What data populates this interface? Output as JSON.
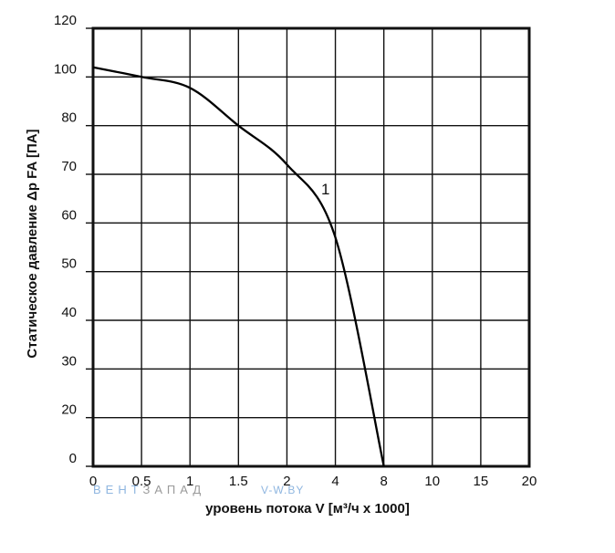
{
  "chart_data": {
    "type": "line",
    "xlabel": "уровень потока V [м³/ч x 1000]",
    "ylabel": "Статическое давление Δp FA [ПА]",
    "x_tick_labels": [
      "0",
      "0.5",
      "1",
      "1.5",
      "2",
      "4",
      "8",
      "10",
      "15",
      "20"
    ],
    "y_tick_labels": [
      "0",
      "20",
      "30",
      "40",
      "50",
      "60",
      "70",
      "80",
      "100",
      "120"
    ],
    "grid": true,
    "series": [
      {
        "name": "1",
        "points": [
          {
            "x": 0,
            "y": 104
          },
          {
            "x": 0.5,
            "y": 100
          },
          {
            "x": 1,
            "y": 95.5
          },
          {
            "x": 1.5,
            "y": 80
          },
          {
            "x": 2,
            "y": 72
          },
          {
            "x": 4,
            "y": 57
          },
          {
            "x": 8,
            "y": 0
          }
        ]
      }
    ]
  },
  "watermark": {
    "brand": "ВЕНТЗАПАД",
    "brand_part_blue": "ВЕНТ",
    "brand_part_gray": "ЗАПАД",
    "url": "V-W.BY",
    "color_blue": "#8fb6e0",
    "color_gray": "#9a9a9a"
  },
  "colors": {
    "curve": "#000000",
    "grid": "#111111",
    "background": "#ffffff"
  }
}
